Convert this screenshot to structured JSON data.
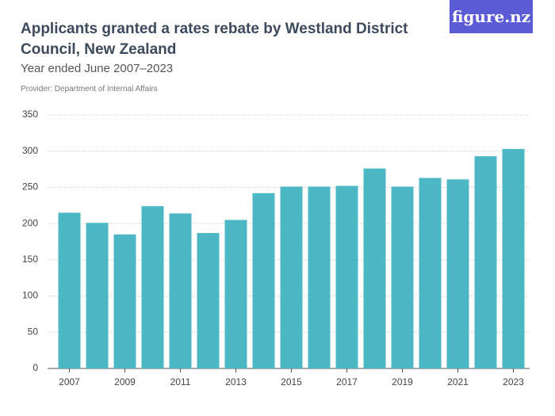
{
  "chart_data": {
    "type": "bar",
    "title": "Applicants granted a rates rebate by Westland District Council, New Zealand",
    "subtitle": "Year ended June 2007–2023",
    "provider": "Provider: Department of Internal Affairs",
    "logo": "figure.nz",
    "categories": [
      "2007",
      null,
      "2009",
      null,
      "2011",
      null,
      "2013",
      null,
      "2015",
      null,
      "2017",
      null,
      "2019",
      null,
      "2021",
      null,
      "2023"
    ],
    "values": [
      215,
      201,
      185,
      224,
      214,
      187,
      205,
      242,
      251,
      251,
      252,
      276,
      251,
      263,
      261,
      293,
      303
    ],
    "color": "#4cb8c4",
    "ylim": [
      0,
      350
    ],
    "yticks": [
      0,
      50,
      100,
      150,
      200,
      250,
      300,
      350
    ],
    "grid": true
  }
}
